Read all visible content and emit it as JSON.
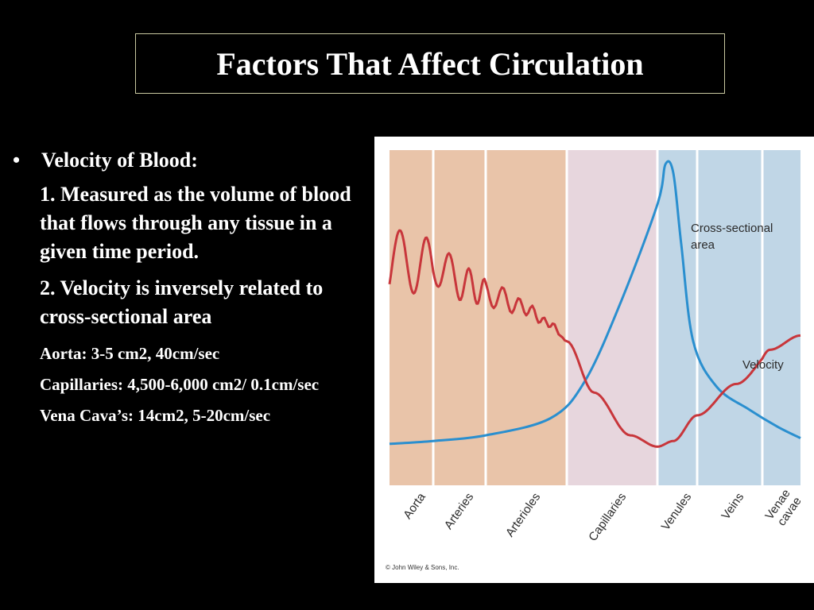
{
  "slide": {
    "title": "Factors That Affect Circulation",
    "bullet_marker": "•",
    "heading": "Velocity of Blood:",
    "point1": "1.  Measured as the volume of blood that flows through any tissue in a given time period.",
    "point2": "2.  Velocity is inversely related to cross-sectional area",
    "aorta": "Aorta: 3-5 cm2, 40cm/sec",
    "capillaries": "Capillaries:  4,500-6,000 cm2/ 0.1cm/sec",
    "vena_cava": "Vena Cava’s: 14cm2, 5-20cm/sec",
    "copyright": "© John Wiley & Sons, Inc."
  },
  "colors": {
    "background": "#000000",
    "arterial_band": "#e9c4a9",
    "capillary_band": "#e7d6dd",
    "venous_band": "#c0d6e6",
    "cross_section_curve": "#2a8fcf",
    "velocity_curve": "#c8363b"
  },
  "chart_data": {
    "type": "line",
    "title": "",
    "xlabel": "",
    "ylabel": "",
    "grid": false,
    "legend": "inline labels",
    "regions": [
      {
        "name": "Aorta",
        "group": "arterial"
      },
      {
        "name": "Arteries",
        "group": "arterial"
      },
      {
        "name": "Arterioles",
        "group": "arterial"
      },
      {
        "name": "Capillaries",
        "group": "capillary"
      },
      {
        "name": "Venules",
        "group": "venous"
      },
      {
        "name": "Veins",
        "group": "venous"
      },
      {
        "name": "Venae cavae",
        "group": "venous"
      }
    ],
    "series": [
      {
        "name": "Cross-sectional area",
        "note": "relative scale 0-100, x in region index units (0-7)",
        "x": [
          0,
          1,
          2,
          2.8,
          3.2,
          3.6,
          4.0,
          4.2,
          4.4,
          4.6,
          4.9,
          5.3,
          5.8,
          6.4,
          7
        ],
        "values": [
          2,
          3,
          5,
          11,
          24,
          52,
          86,
          100,
          97,
          72,
          38,
          22,
          14,
          8,
          4
        ]
      },
      {
        "name": "Velocity",
        "note": "relative scale 0-100, pulsatile in arteries",
        "x": [
          0,
          0.35,
          0.7,
          1.05,
          1.4,
          1.75,
          2.1,
          2.45,
          2.8,
          3.0,
          3.3,
          3.7,
          4.0,
          4.4,
          5.0,
          5.6,
          6.2,
          7
        ],
        "values": [
          58,
          68,
          64,
          66,
          60,
          57,
          54,
          50,
          44,
          38,
          20,
          5,
          1,
          3,
          12,
          23,
          35,
          40
        ]
      }
    ],
    "series_labels": [
      "Cross-sectional area",
      "Velocity"
    ]
  }
}
